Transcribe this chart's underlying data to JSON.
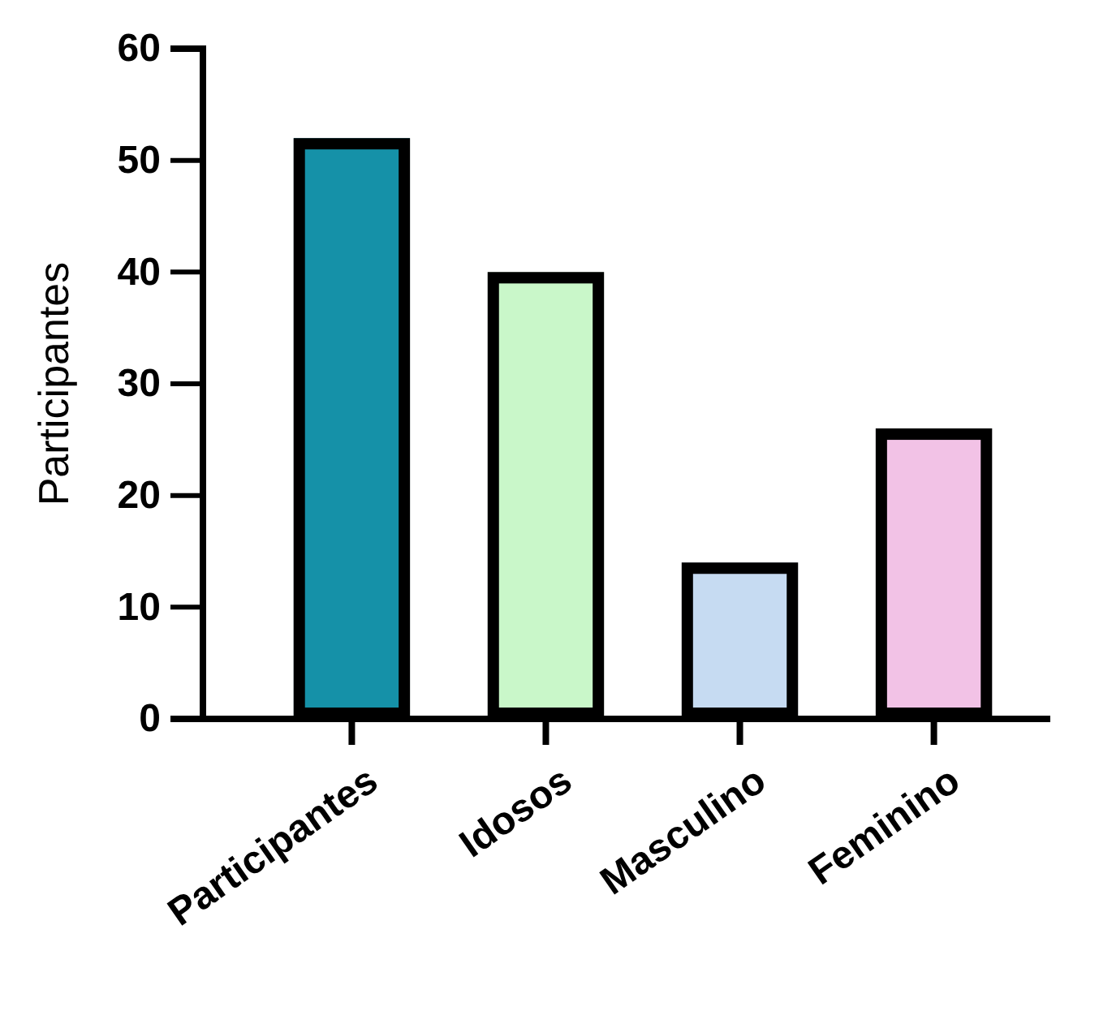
{
  "chart_data": {
    "type": "bar",
    "ylabel": "Participantes",
    "categories": [
      "Participantes",
      "Idosos",
      "Masculino",
      "Feminino"
    ],
    "values": [
      52,
      40,
      14,
      26
    ],
    "colors": [
      "#1591a8",
      "#c9f7c9",
      "#c6dbf2",
      "#f2c2e6"
    ],
    "ylim": [
      0,
      60
    ],
    "yticks": [
      0,
      10,
      20,
      30,
      40,
      50,
      60
    ],
    "grid": false,
    "legend": false
  }
}
